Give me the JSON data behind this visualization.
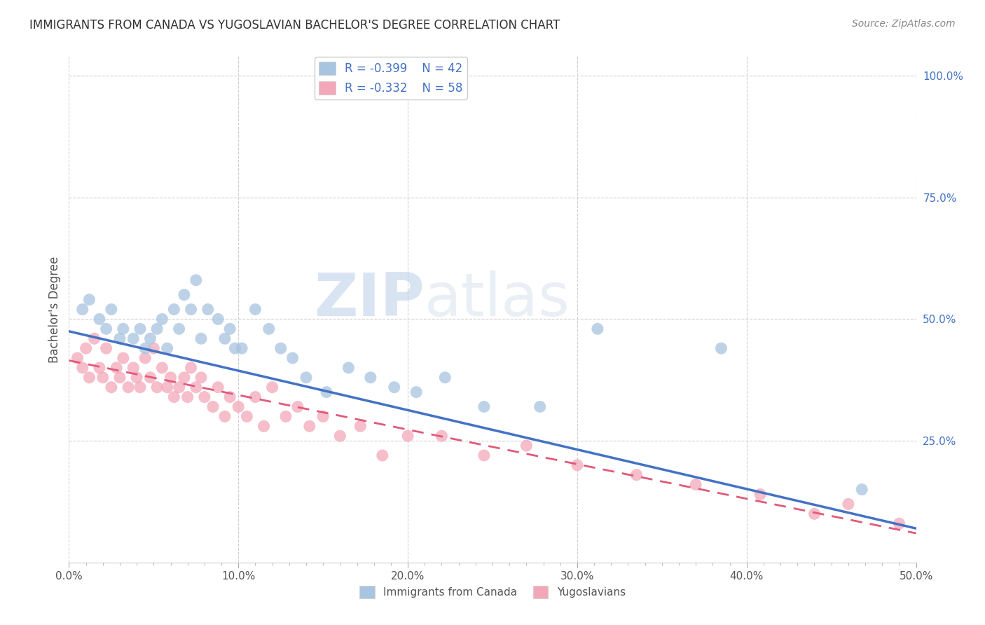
{
  "title": "IMMIGRANTS FROM CANADA VS YUGOSLAVIAN BACHELOR'S DEGREE CORRELATION CHART",
  "source": "Source: ZipAtlas.com",
  "ylabel": "Bachelor's Degree",
  "xlim": [
    0.0,
    0.5
  ],
  "ylim": [
    0.0,
    1.04
  ],
  "xtick_labels": [
    "0.0%",
    "",
    "",
    "",
    "",
    "",
    "",
    "",
    "",
    "",
    "10.0%",
    "",
    "",
    "",
    "",
    "",
    "",
    "",
    "",
    "",
    "20.0%",
    "",
    "",
    "",
    "",
    "",
    "",
    "",
    "",
    "",
    "30.0%",
    "",
    "",
    "",
    "",
    "",
    "",
    "",
    "",
    "",
    "40.0%",
    "",
    "",
    "",
    "",
    "",
    "",
    "",
    "",
    "",
    "50.0%"
  ],
  "xtick_vals": [
    0.0,
    0.01,
    0.02,
    0.03,
    0.04,
    0.05,
    0.06,
    0.07,
    0.08,
    0.09,
    0.1,
    0.11,
    0.12,
    0.13,
    0.14,
    0.15,
    0.16,
    0.17,
    0.18,
    0.19,
    0.2,
    0.21,
    0.22,
    0.23,
    0.24,
    0.25,
    0.26,
    0.27,
    0.28,
    0.29,
    0.3,
    0.31,
    0.32,
    0.33,
    0.34,
    0.35,
    0.36,
    0.37,
    0.38,
    0.39,
    0.4,
    0.41,
    0.42,
    0.43,
    0.44,
    0.45,
    0.46,
    0.47,
    0.48,
    0.49,
    0.5
  ],
  "major_xtick_labels": [
    "0.0%",
    "10.0%",
    "20.0%",
    "30.0%",
    "40.0%",
    "50.0%"
  ],
  "major_xtick_vals": [
    0.0,
    0.1,
    0.2,
    0.3,
    0.4,
    0.5
  ],
  "ytick_labels": [
    "25.0%",
    "50.0%",
    "75.0%",
    "100.0%"
  ],
  "ytick_vals": [
    0.25,
    0.5,
    0.75,
    1.0
  ],
  "legend_R1": "R = -0.399",
  "legend_N1": "N = 42",
  "legend_R2": "R = -0.332",
  "legend_N2": "N = 58",
  "legend_label1": "Immigrants from Canada",
  "legend_label2": "Yugoslavians",
  "color_canada": "#a8c4e0",
  "color_yugoslavia": "#f4a7b9",
  "line_color_canada": "#4472c4",
  "line_color_yugoslavia": "#e05a7a",
  "watermark_zip": "ZIP",
  "watermark_atlas": "atlas",
  "background_color": "#ffffff",
  "grid_color": "#d0d0d0",
  "title_color": "#333333",
  "source_color": "#888888",
  "tick_color": "#555555",
  "canada_x": [
    0.008,
    0.012,
    0.018,
    0.022,
    0.025,
    0.03,
    0.032,
    0.038,
    0.042,
    0.045,
    0.048,
    0.052,
    0.055,
    0.058,
    0.062,
    0.065,
    0.068,
    0.072,
    0.075,
    0.078,
    0.082,
    0.088,
    0.092,
    0.095,
    0.098,
    0.102,
    0.11,
    0.118,
    0.125,
    0.132,
    0.14,
    0.152,
    0.165,
    0.178,
    0.192,
    0.205,
    0.222,
    0.245,
    0.278,
    0.312,
    0.385,
    0.468
  ],
  "canada_y": [
    0.52,
    0.54,
    0.5,
    0.48,
    0.52,
    0.46,
    0.48,
    0.46,
    0.48,
    0.44,
    0.46,
    0.48,
    0.5,
    0.44,
    0.52,
    0.48,
    0.55,
    0.52,
    0.58,
    0.46,
    0.52,
    0.5,
    0.46,
    0.48,
    0.44,
    0.44,
    0.52,
    0.48,
    0.44,
    0.42,
    0.38,
    0.35,
    0.4,
    0.38,
    0.36,
    0.35,
    0.38,
    0.32,
    0.32,
    0.48,
    0.44,
    0.15
  ],
  "yugoslavia_x": [
    0.005,
    0.008,
    0.01,
    0.012,
    0.015,
    0.018,
    0.02,
    0.022,
    0.025,
    0.028,
    0.03,
    0.032,
    0.035,
    0.038,
    0.04,
    0.042,
    0.045,
    0.048,
    0.05,
    0.052,
    0.055,
    0.058,
    0.06,
    0.062,
    0.065,
    0.068,
    0.07,
    0.072,
    0.075,
    0.078,
    0.08,
    0.085,
    0.088,
    0.092,
    0.095,
    0.1,
    0.105,
    0.11,
    0.115,
    0.12,
    0.128,
    0.135,
    0.142,
    0.15,
    0.16,
    0.172,
    0.185,
    0.2,
    0.22,
    0.245,
    0.27,
    0.3,
    0.335,
    0.37,
    0.408,
    0.44,
    0.46,
    0.49
  ],
  "yugoslavia_y": [
    0.42,
    0.4,
    0.44,
    0.38,
    0.46,
    0.4,
    0.38,
    0.44,
    0.36,
    0.4,
    0.38,
    0.42,
    0.36,
    0.4,
    0.38,
    0.36,
    0.42,
    0.38,
    0.44,
    0.36,
    0.4,
    0.36,
    0.38,
    0.34,
    0.36,
    0.38,
    0.34,
    0.4,
    0.36,
    0.38,
    0.34,
    0.32,
    0.36,
    0.3,
    0.34,
    0.32,
    0.3,
    0.34,
    0.28,
    0.36,
    0.3,
    0.32,
    0.28,
    0.3,
    0.26,
    0.28,
    0.22,
    0.26,
    0.26,
    0.22,
    0.24,
    0.2,
    0.18,
    0.16,
    0.14,
    0.1,
    0.12,
    0.08
  ],
  "canada_line_x0": 0.0,
  "canada_line_x1": 0.5,
  "canada_line_y0": 0.475,
  "canada_line_y1": 0.07,
  "yugo_line_x0": 0.0,
  "yugo_line_x1": 0.5,
  "yugo_line_y0": 0.415,
  "yugo_line_y1": 0.06
}
